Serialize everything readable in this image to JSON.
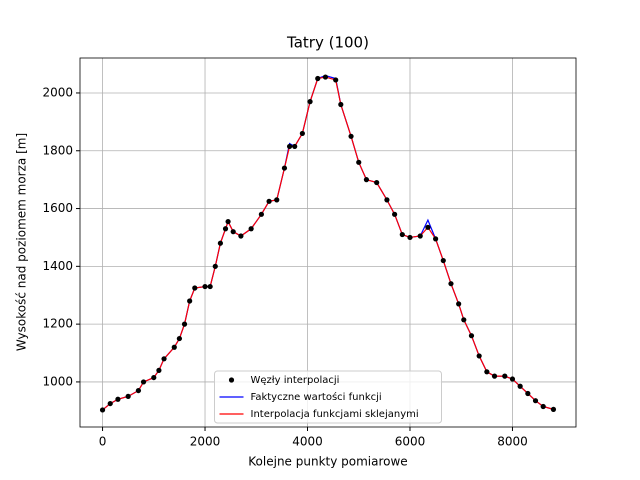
{
  "chart_data": {
    "type": "line",
    "title": "Tatry (100)",
    "xlabel": "Kolejne punkty pomiarowe",
    "ylabel": "Wysokość nad poziomem morza [m]",
    "x": [
      0,
      150,
      300,
      500,
      700,
      800,
      1000,
      1100,
      1200,
      1400,
      1500,
      1600,
      1700,
      1800,
      2000,
      2100,
      2200,
      2300,
      2400,
      2450,
      2550,
      2700,
      2900,
      3100,
      3250,
      3400,
      3550,
      3650,
      3750,
      3900,
      4050,
      4200,
      4350,
      4550,
      4650,
      4850,
      5000,
      5150,
      5350,
      5550,
      5700,
      5850,
      6000,
      6200,
      6350,
      6500,
      6650,
      6800,
      6950,
      7050,
      7200,
      7350,
      7500,
      7650,
      7850,
      8000,
      8150,
      8300,
      8450,
      8600,
      8800
    ],
    "series": [
      {
        "name": "Węzły interpolacji",
        "color": "#000000",
        "mark": "point",
        "values": [
          903,
          925,
          940,
          950,
          970,
          1000,
          1015,
          1040,
          1080,
          1120,
          1150,
          1200,
          1280,
          1325,
          1330,
          1330,
          1400,
          1480,
          1530,
          1555,
          1520,
          1505,
          1530,
          1580,
          1625,
          1630,
          1740,
          1815,
          1815,
          1860,
          1970,
          2050,
          2055,
          2045,
          1960,
          1850,
          1760,
          1700,
          1690,
          1630,
          1580,
          1510,
          1500,
          1505,
          1535,
          1495,
          1420,
          1340,
          1270,
          1215,
          1160,
          1090,
          1035,
          1020,
          1020,
          1010,
          985,
          960,
          935,
          915,
          905
        ]
      },
      {
        "name": "Faktyczne wartości funkcji",
        "color": "#0000ff",
        "mark": "line",
        "values": [
          903,
          925,
          940,
          950,
          970,
          1000,
          1015,
          1040,
          1080,
          1120,
          1150,
          1200,
          1280,
          1325,
          1330,
          1330,
          1400,
          1480,
          1530,
          1555,
          1520,
          1505,
          1530,
          1580,
          1625,
          1630,
          1740,
          1825,
          1815,
          1860,
          1970,
          2050,
          2060,
          2050,
          1960,
          1850,
          1760,
          1700,
          1690,
          1630,
          1580,
          1510,
          1500,
          1505,
          1560,
          1495,
          1420,
          1340,
          1270,
          1215,
          1160,
          1090,
          1035,
          1020,
          1020,
          1010,
          985,
          960,
          935,
          915,
          905
        ]
      },
      {
        "name": "Interpolacja funkcjami sklejanymi",
        "color": "#ff0000",
        "mark": "line",
        "values": [
          903,
          925,
          940,
          950,
          970,
          1000,
          1015,
          1040,
          1080,
          1120,
          1150,
          1200,
          1280,
          1325,
          1330,
          1330,
          1400,
          1480,
          1530,
          1555,
          1520,
          1505,
          1530,
          1580,
          1625,
          1630,
          1740,
          1815,
          1815,
          1860,
          1970,
          2050,
          2055,
          2045,
          1960,
          1850,
          1760,
          1700,
          1690,
          1630,
          1580,
          1510,
          1500,
          1505,
          1535,
          1495,
          1420,
          1340,
          1270,
          1215,
          1160,
          1090,
          1035,
          1020,
          1020,
          1010,
          985,
          960,
          935,
          915,
          905
        ]
      }
    ],
    "xlim": [
      -440,
      9240
    ],
    "ylim": [
      844,
      2121
    ],
    "xticks": [
      0,
      2000,
      4000,
      6000,
      8000
    ],
    "yticks": [
      1000,
      1200,
      1400,
      1600,
      1800,
      2000
    ],
    "grid": true,
    "legend": "lower center"
  }
}
